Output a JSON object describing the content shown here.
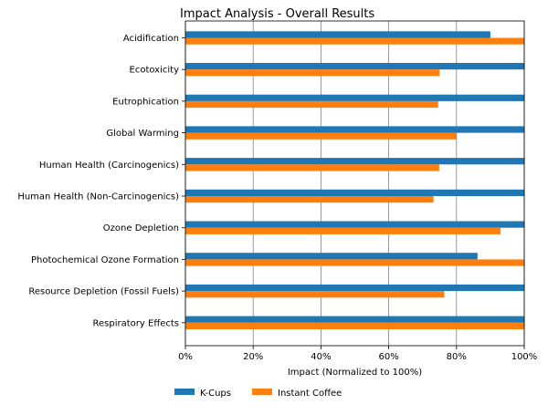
{
  "chart_data": {
    "type": "bar",
    "orientation": "horizontal",
    "title": "Impact Analysis - Overall Results",
    "xlabel": "Impact (Normalized to 100%)",
    "ylabel": "",
    "xlim": [
      0,
      100
    ],
    "xticks": [
      0,
      20,
      40,
      60,
      80,
      100
    ],
    "xtick_labels": [
      "0%",
      "20%",
      "40%",
      "60%",
      "80%",
      "100%"
    ],
    "grid": "vertical",
    "legend_position": "bottom-left",
    "categories": [
      "Acidification",
      "Ecotoxicity",
      "Eutrophication",
      "Global Warming",
      "Human Health (Carcinogenics)",
      "Human Health (Non-Carcinogenics)",
      "Ozone Depletion",
      "Photochemical Ozone Formation",
      "Resource Depletion (Fossil Fuels)",
      "Respiratory Effects"
    ],
    "series": [
      {
        "name": "K-Cups",
        "color": "#1f77b4",
        "values": [
          90,
          100,
          100,
          100,
          100,
          100,
          100,
          86.2,
          100,
          100
        ]
      },
      {
        "name": "Instant Coffee",
        "color": "#ff7f0e",
        "values": [
          100,
          75,
          74.6,
          80,
          74.9,
          73.2,
          93,
          100,
          76.4,
          100
        ]
      }
    ]
  }
}
